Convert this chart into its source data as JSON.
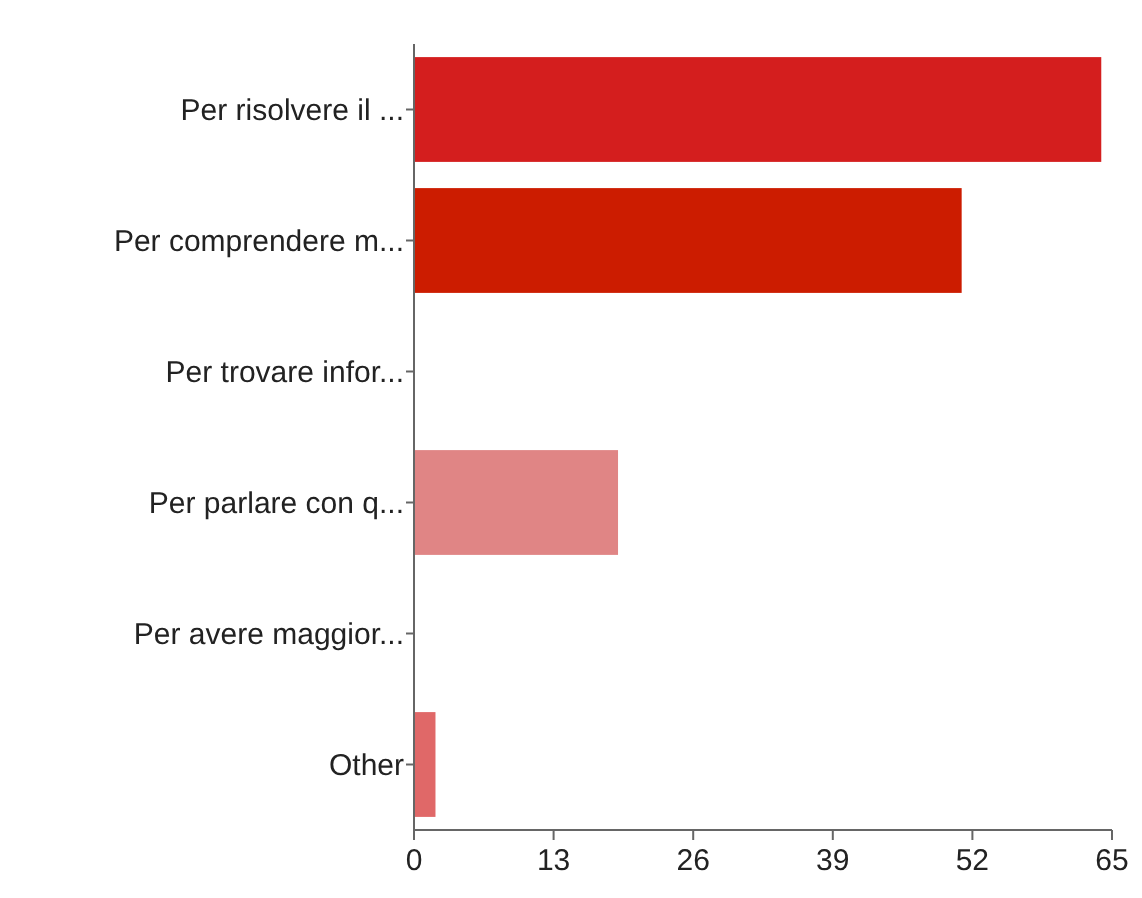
{
  "chart_data": {
    "type": "bar",
    "orientation": "horizontal",
    "categories": [
      "Per risolvere il ...",
      "Per comprendere m...",
      "Per trovare infor...",
      "Per parlare con q...",
      "Per avere maggior...",
      "Other"
    ],
    "values": [
      64,
      51,
      0,
      19,
      0,
      2
    ],
    "colors": [
      "#d41e1e",
      "#cc1c00",
      "#d41e1e",
      "#e08585",
      "#e08585",
      "#e06868"
    ],
    "xlim": [
      0,
      65
    ],
    "xticks": [
      0,
      13,
      26,
      39,
      52,
      65
    ],
    "grid": false
  }
}
